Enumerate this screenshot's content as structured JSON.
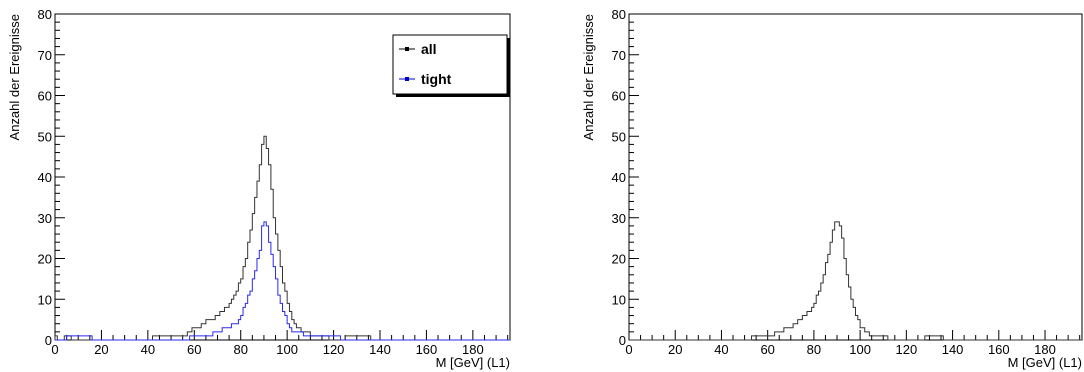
{
  "chart_data": [
    {
      "type": "histogram",
      "xlabel": "M [GeV] (L1)",
      "ylabel": "Anzahl der Ereignisse",
      "xlim": [
        0,
        196
      ],
      "ylim": [
        0,
        80
      ],
      "xticks": [
        "0",
        "20",
        "40",
        "60",
        "80",
        "100",
        "120",
        "140",
        "160",
        "180"
      ],
      "yticks": [
        "0",
        "10",
        "20",
        "30",
        "40",
        "50",
        "60",
        "70",
        "80"
      ],
      "bin_width": 1,
      "grid": false,
      "legend": {
        "placement": "top-right",
        "entries": [
          {
            "label": "all",
            "color": "#000000"
          },
          {
            "label": "tight",
            "color": "#0000cc"
          }
        ]
      },
      "series": [
        {
          "name": "all",
          "color": "#333333",
          "points": [
            [
              0,
              1
            ],
            [
              1,
              0
            ],
            [
              2,
              0
            ],
            [
              3,
              0
            ],
            [
              5,
              1
            ],
            [
              7,
              0
            ],
            [
              20,
              0
            ],
            [
              30,
              0
            ],
            [
              38,
              0
            ],
            [
              45,
              1
            ],
            [
              50,
              1
            ],
            [
              55,
              1
            ],
            [
              58,
              2
            ],
            [
              60,
              3
            ],
            [
              62,
              3
            ],
            [
              64,
              4
            ],
            [
              66,
              5
            ],
            [
              68,
              5
            ],
            [
              70,
              6
            ],
            [
              72,
              7
            ],
            [
              74,
              8
            ],
            [
              76,
              10
            ],
            [
              78,
              12
            ],
            [
              80,
              15
            ],
            [
              82,
              20
            ],
            [
              84,
              27
            ],
            [
              86,
              35
            ],
            [
              88,
              43
            ],
            [
              89,
              48
            ],
            [
              90,
              50
            ],
            [
              91,
              47
            ],
            [
              92,
              43
            ],
            [
              93,
              37
            ],
            [
              94,
              30
            ],
            [
              96,
              22
            ],
            [
              98,
              14
            ],
            [
              100,
              9
            ],
            [
              102,
              5
            ],
            [
              104,
              3
            ],
            [
              106,
              2
            ],
            [
              108,
              2
            ],
            [
              110,
              1
            ],
            [
              115,
              1
            ],
            [
              120,
              0
            ],
            [
              130,
              1
            ],
            [
              140,
              0
            ],
            [
              150,
              0
            ],
            [
              160,
              0
            ],
            [
              170,
              0
            ],
            [
              180,
              0
            ],
            [
              195,
              0
            ]
          ]
        },
        {
          "name": "tight",
          "color": "#2a2af0",
          "points": [
            [
              0,
              0
            ],
            [
              10,
              1
            ],
            [
              20,
              0
            ],
            [
              30,
              0
            ],
            [
              40,
              0
            ],
            [
              55,
              0
            ],
            [
              60,
              1
            ],
            [
              65,
              1
            ],
            [
              70,
              2
            ],
            [
              74,
              3
            ],
            [
              78,
              4
            ],
            [
              80,
              6
            ],
            [
              82,
              9
            ],
            [
              84,
              12
            ],
            [
              86,
              17
            ],
            [
              88,
              22
            ],
            [
              89,
              28
            ],
            [
              90,
              29
            ],
            [
              91,
              28
            ],
            [
              92,
              24
            ],
            [
              94,
              18
            ],
            [
              96,
              11
            ],
            [
              98,
              7
            ],
            [
              100,
              4
            ],
            [
              102,
              2
            ],
            [
              104,
              2
            ],
            [
              108,
              1
            ],
            [
              115,
              1
            ],
            [
              130,
              0
            ],
            [
              195,
              0
            ]
          ]
        }
      ]
    },
    {
      "type": "histogram",
      "xlabel": "M [GeV] (L1)",
      "ylabel": "Anzahl der Ereignisse",
      "xlim": [
        0,
        196
      ],
      "ylim": [
        0,
        80
      ],
      "xticks": [
        "0",
        "20",
        "40",
        "60",
        "80",
        "100",
        "120",
        "140",
        "160",
        "180"
      ],
      "yticks": [
        "0",
        "10",
        "20",
        "30",
        "40",
        "50",
        "60",
        "70",
        "80"
      ],
      "bin_width": 1,
      "grid": false,
      "series": [
        {
          "color": "#333333",
          "points": [
            [
              0,
              0
            ],
            [
              50,
              0
            ],
            [
              55,
              1
            ],
            [
              60,
              1
            ],
            [
              65,
              2
            ],
            [
              68,
              3
            ],
            [
              70,
              3
            ],
            [
              72,
              4
            ],
            [
              74,
              5
            ],
            [
              76,
              6
            ],
            [
              78,
              7
            ],
            [
              80,
              9
            ],
            [
              82,
              12
            ],
            [
              84,
              16
            ],
            [
              86,
              21
            ],
            [
              88,
              27
            ],
            [
              89,
              29
            ],
            [
              90,
              29
            ],
            [
              91,
              28
            ],
            [
              92,
              25
            ],
            [
              93,
              20
            ],
            [
              94,
              16
            ],
            [
              96,
              10
            ],
            [
              98,
              6
            ],
            [
              100,
              3
            ],
            [
              102,
              2
            ],
            [
              104,
              1
            ],
            [
              108,
              1
            ],
            [
              115,
              0
            ],
            [
              125,
              0
            ],
            [
              130,
              1
            ],
            [
              140,
              0
            ],
            [
              195,
              0
            ]
          ]
        }
      ]
    }
  ]
}
